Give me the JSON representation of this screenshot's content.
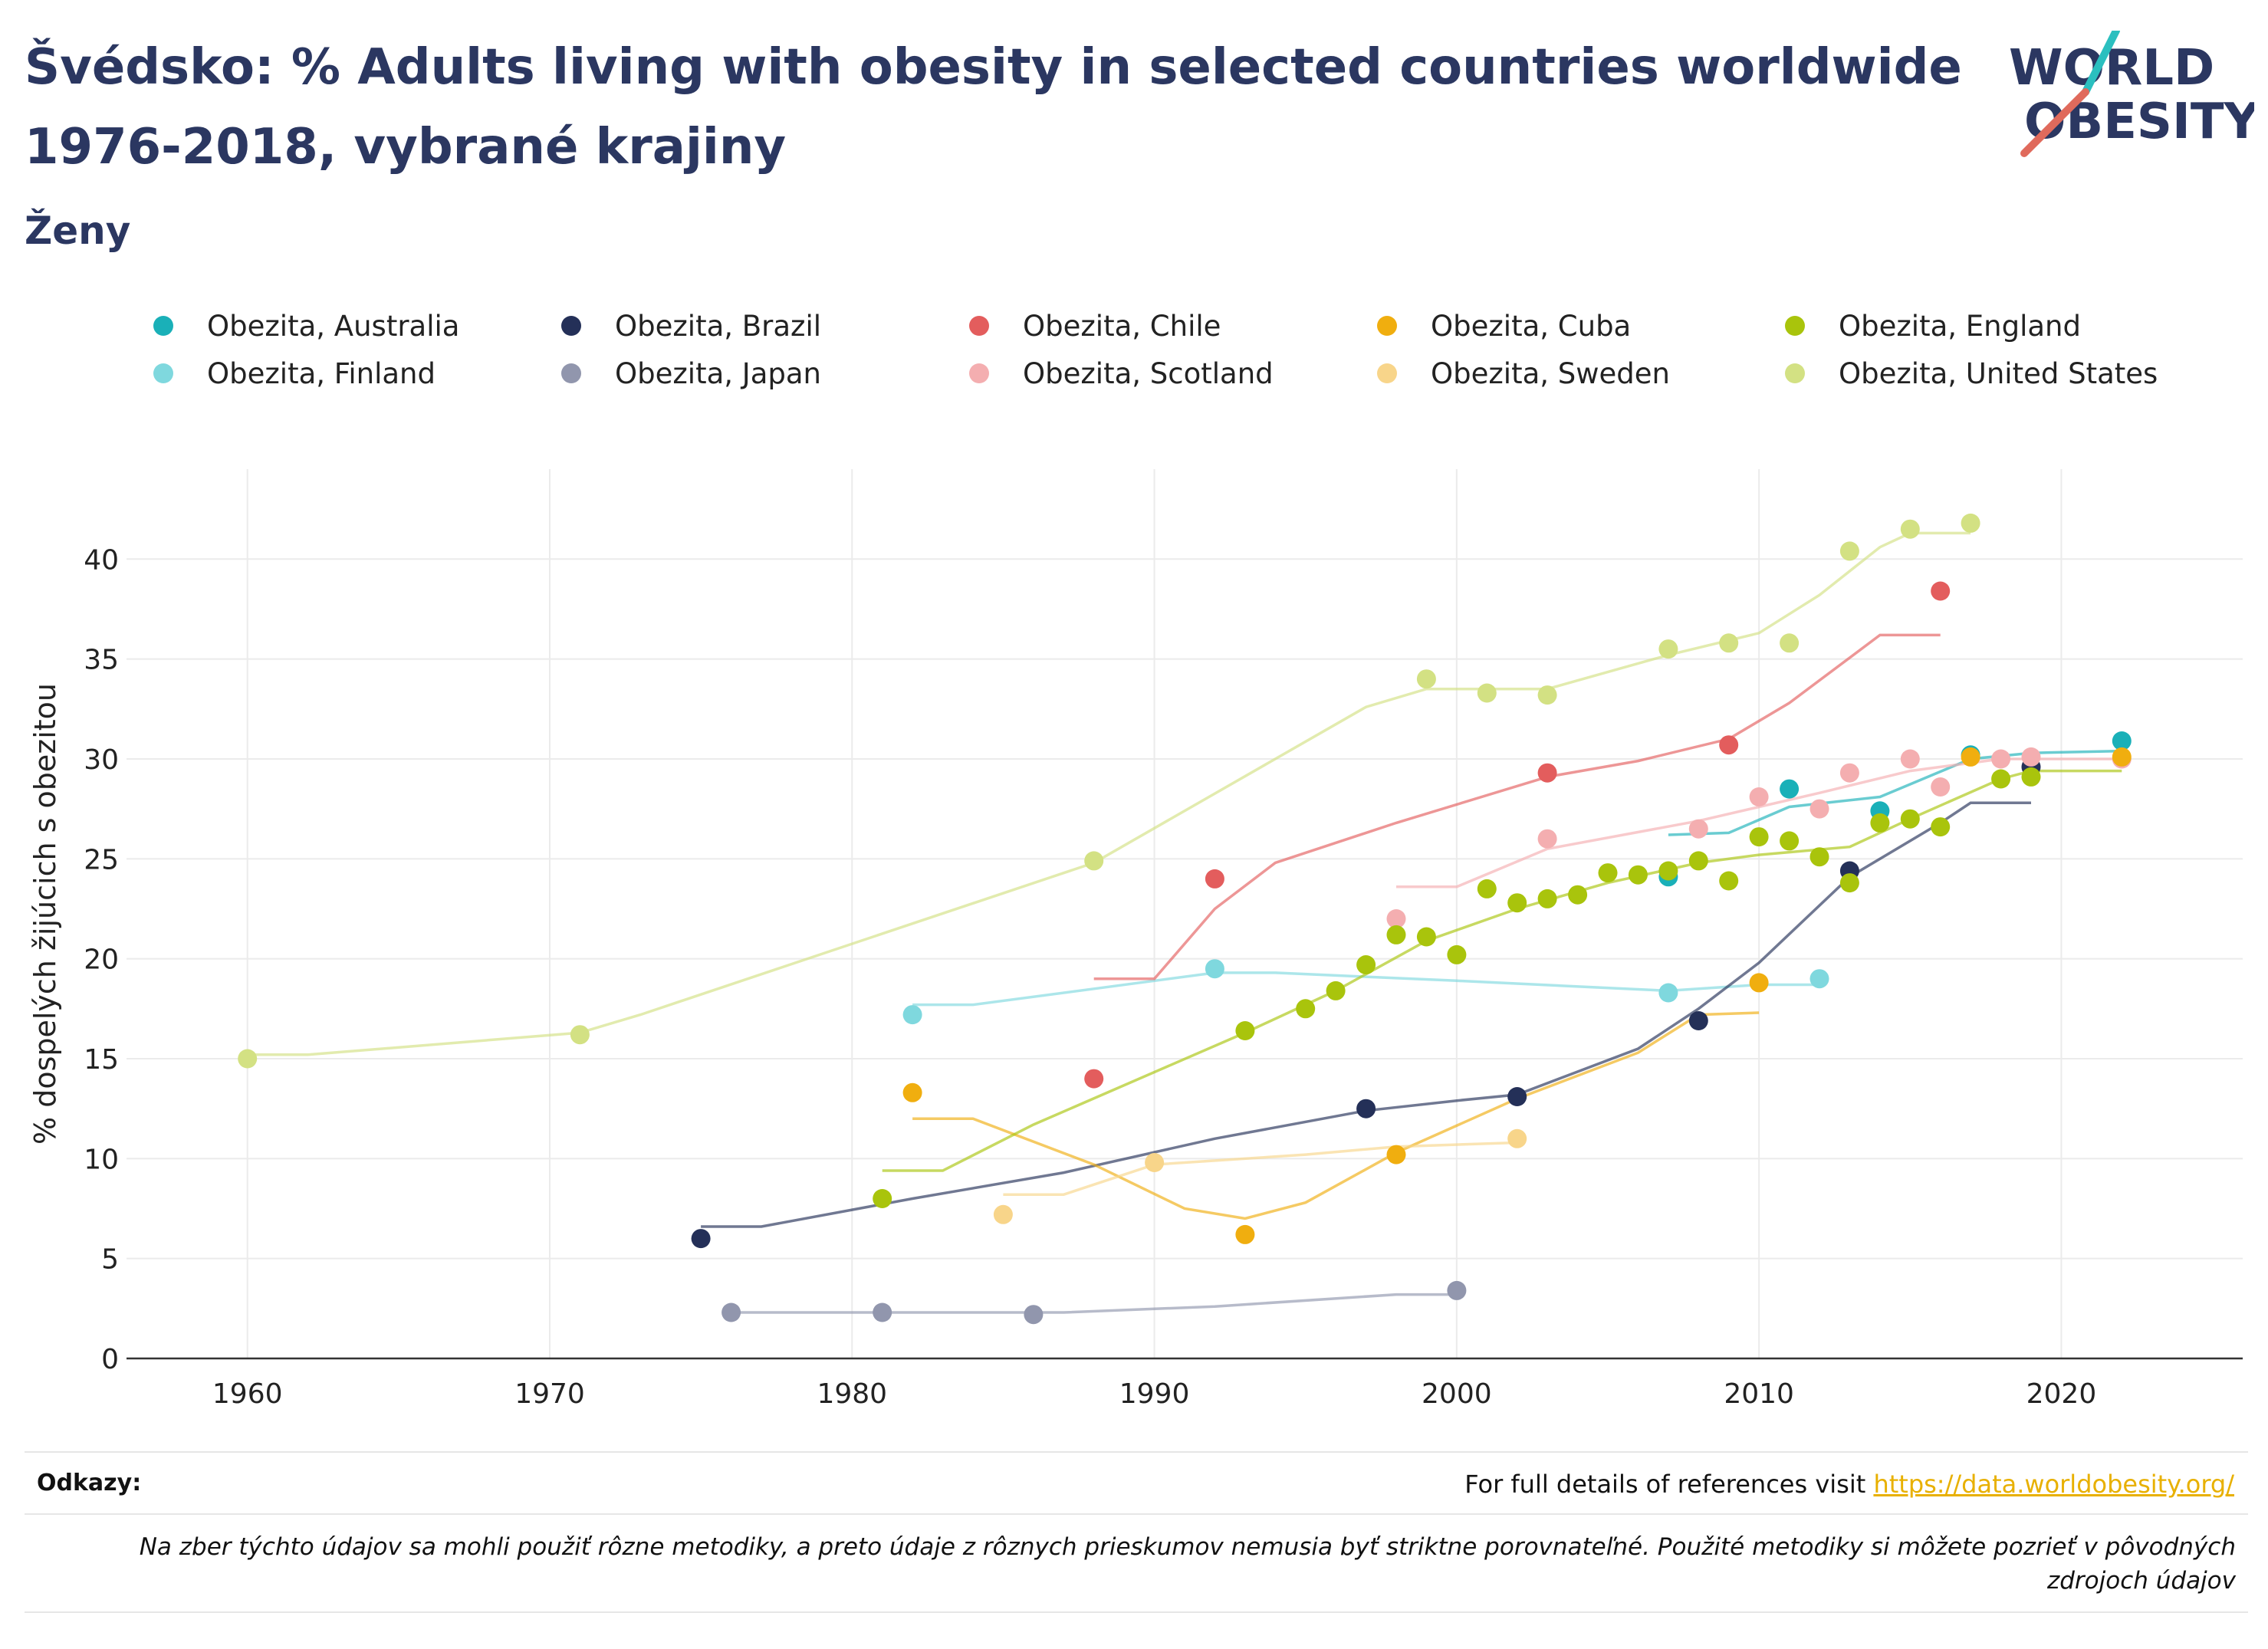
{
  "header": {
    "title": "Švédsko: % Adults living with obesity in selected countries worldwide 1976-2018, vybrané krajiny",
    "subtitle": "Ženy",
    "logo_line1": "WORLD",
    "logo_line2": "OBESITY"
  },
  "footer": {
    "ref_label": "Odkazy:",
    "ref_text": "For full details of references visit ",
    "ref_link": "https://data.worldobesity.org/",
    "note": "Na zber týchto údajov sa mohli použiť rôzne metodiky, a preto údaje z rôznych prieskumov nemusia byť striktne porovnateľné. Použité metodiky si môžete pozrieť v pôvodných zdrojoch údajov"
  },
  "colors": {
    "title": "#2b3761",
    "logo_slash_teal": "#2bbfbf",
    "logo_slash_red": "#e06a5c"
  },
  "chart_data": {
    "type": "scatter",
    "title": "Švédsko: % Adults living with obesity in selected countries worldwide 1976-2018, vybrané krajiny",
    "subtitle": "Ženy",
    "xlabel": "",
    "ylabel": "% dospelých žijúcich s obezitou",
    "xlim": [
      1956,
      2026
    ],
    "ylim": [
      0,
      44.5
    ],
    "xticks": [
      1960,
      1970,
      1980,
      1990,
      2000,
      2010,
      2020
    ],
    "yticks": [
      0,
      5,
      10,
      15,
      20,
      25,
      30,
      35,
      40
    ],
    "grid": true,
    "legend_position": "top",
    "series": [
      {
        "name": "Obezita, Australia",
        "color": "#1ab0b8",
        "points": [
          [
            2007,
            24.1
          ],
          [
            2011,
            28.5
          ],
          [
            2014,
            27.4
          ],
          [
            2017,
            30.2
          ],
          [
            2022,
            30.9
          ]
        ],
        "trend": [
          [
            2007,
            26.2
          ],
          [
            2009,
            26.3
          ],
          [
            2011,
            27.6
          ],
          [
            2014,
            28.1
          ],
          [
            2017,
            30.0
          ],
          [
            2019,
            30.3
          ],
          [
            2022,
            30.4
          ]
        ]
      },
      {
        "name": "Obezita, Finland",
        "color": "#7fd8de",
        "points": [
          [
            1982,
            17.2
          ],
          [
            1992,
            19.5
          ],
          [
            2007,
            18.3
          ],
          [
            2012,
            19.0
          ]
        ],
        "trend": [
          [
            1982,
            17.7
          ],
          [
            1984,
            17.7
          ],
          [
            1988,
            18.5
          ],
          [
            1992,
            19.3
          ],
          [
            1994,
            19.3
          ],
          [
            2000,
            18.9
          ],
          [
            2007,
            18.4
          ],
          [
            2010,
            18.7
          ],
          [
            2012,
            18.7
          ]
        ]
      },
      {
        "name": "Obezita, Brazil",
        "color": "#243058",
        "points": [
          [
            1975,
            6.0
          ],
          [
            1997,
            12.5
          ],
          [
            2002,
            13.1
          ],
          [
            2008,
            16.9
          ],
          [
            2013,
            24.4
          ],
          [
            2019,
            29.6
          ]
        ],
        "trend": [
          [
            1975,
            6.6
          ],
          [
            1977,
            6.6
          ],
          [
            1982,
            8.0
          ],
          [
            1987,
            9.3
          ],
          [
            1992,
            11.0
          ],
          [
            1997,
            12.4
          ],
          [
            2000,
            12.9
          ],
          [
            2002,
            13.2
          ],
          [
            2006,
            15.5
          ],
          [
            2008,
            17.5
          ],
          [
            2010,
            19.8
          ],
          [
            2013,
            24.1
          ],
          [
            2016,
            26.8
          ],
          [
            2017,
            27.8
          ],
          [
            2019,
            27.8
          ]
        ]
      },
      {
        "name": "Obezita, Japan",
        "color": "#9196ad",
        "points": [
          [
            1976,
            2.3
          ],
          [
            1981,
            2.3
          ],
          [
            1986,
            2.2
          ],
          [
            2000,
            3.4
          ]
        ],
        "trend": [
          [
            1976,
            2.3
          ],
          [
            1981,
            2.3
          ],
          [
            1987,
            2.3
          ],
          [
            1992,
            2.6
          ],
          [
            1998,
            3.2
          ],
          [
            2000,
            3.2
          ]
        ]
      },
      {
        "name": "Obezita, Chile",
        "color": "#e35d5d",
        "points": [
          [
            1988,
            14.0
          ],
          [
            1992,
            24.0
          ],
          [
            2003,
            29.3
          ],
          [
            2009,
            30.7
          ],
          [
            2016,
            38.4
          ]
        ],
        "trend": [
          [
            1988,
            19.0
          ],
          [
            1990,
            19.0
          ],
          [
            1992,
            22.5
          ],
          [
            1994,
            24.8
          ],
          [
            1998,
            26.8
          ],
          [
            2003,
            29.1
          ],
          [
            2006,
            29.9
          ],
          [
            2009,
            31.0
          ],
          [
            2011,
            32.8
          ],
          [
            2014,
            36.2
          ],
          [
            2016,
            36.2
          ]
        ]
      },
      {
        "name": "Obezita, Scotland",
        "color": "#f4aeb0",
        "points": [
          [
            1998,
            22.0
          ],
          [
            2003,
            26.0
          ],
          [
            2008,
            26.5
          ],
          [
            2010,
            28.1
          ],
          [
            2012,
            27.5
          ],
          [
            2013,
            29.3
          ],
          [
            2015,
            30.0
          ],
          [
            2016,
            28.6
          ],
          [
            2018,
            30.0
          ],
          [
            2019,
            30.1
          ],
          [
            2022,
            30.0
          ]
        ],
        "trend": [
          [
            1998,
            23.6
          ],
          [
            2000,
            23.6
          ],
          [
            2003,
            25.5
          ],
          [
            2008,
            26.9
          ],
          [
            2012,
            28.3
          ],
          [
            2015,
            29.4
          ],
          [
            2018,
            30.0
          ],
          [
            2022,
            30.0
          ]
        ]
      },
      {
        "name": "Obezita, Cuba",
        "color": "#f0ae0f",
        "points": [
          [
            1982,
            13.3
          ],
          [
            1993,
            6.2
          ],
          [
            1998,
            10.2
          ],
          [
            2010,
            18.8
          ],
          [
            2017,
            30.1
          ],
          [
            2022,
            30.1
          ]
        ],
        "trend": [
          [
            1982,
            12.0
          ],
          [
            1984,
            12.0
          ],
          [
            1988,
            9.7
          ],
          [
            1991,
            7.5
          ],
          [
            1993,
            7.0
          ],
          [
            1995,
            7.8
          ],
          [
            1998,
            10.3
          ],
          [
            2002,
            13.0
          ],
          [
            2006,
            15.3
          ],
          [
            2008,
            17.2
          ],
          [
            2010,
            17.3
          ]
        ]
      },
      {
        "name": "Obezita, Sweden",
        "color": "#f8d58a",
        "points": [
          [
            1985,
            7.2
          ],
          [
            1990,
            9.8
          ],
          [
            2002,
            11.0
          ]
        ],
        "trend": [
          [
            1985,
            8.2
          ],
          [
            1987,
            8.2
          ],
          [
            1990,
            9.7
          ],
          [
            1995,
            10.2
          ],
          [
            1998,
            10.6
          ],
          [
            2002,
            10.8
          ]
        ]
      },
      {
        "name": "Obezita, England",
        "color": "#a9c40c",
        "points": [
          [
            1981,
            8.0
          ],
          [
            1993,
            16.4
          ],
          [
            1995,
            17.5
          ],
          [
            1996,
            18.4
          ],
          [
            1997,
            19.7
          ],
          [
            1998,
            21.2
          ],
          [
            1999,
            21.1
          ],
          [
            2000,
            20.2
          ],
          [
            2001,
            23.5
          ],
          [
            2002,
            22.8
          ],
          [
            2003,
            23.0
          ],
          [
            2004,
            23.2
          ],
          [
            2005,
            24.3
          ],
          [
            2006,
            24.2
          ],
          [
            2007,
            24.4
          ],
          [
            2008,
            24.9
          ],
          [
            2009,
            23.9
          ],
          [
            2010,
            26.1
          ],
          [
            2011,
            25.9
          ],
          [
            2012,
            25.1
          ],
          [
            2013,
            23.8
          ],
          [
            2014,
            26.8
          ],
          [
            2015,
            27.0
          ],
          [
            2016,
            26.6
          ],
          [
            2018,
            29.0
          ],
          [
            2019,
            29.1
          ]
        ],
        "trend": [
          [
            1981,
            9.4
          ],
          [
            1983,
            9.4
          ],
          [
            1986,
            11.7
          ],
          [
            1993,
            16.3
          ],
          [
            1996,
            18.4
          ],
          [
            1999,
            20.9
          ],
          [
            2002,
            22.5
          ],
          [
            2005,
            23.8
          ],
          [
            2008,
            24.8
          ],
          [
            2010,
            25.2
          ],
          [
            2013,
            25.6
          ],
          [
            2015,
            27.0
          ],
          [
            2018,
            29.0
          ],
          [
            2019,
            29.4
          ],
          [
            2022,
            29.4
          ]
        ]
      },
      {
        "name": "Obezita, United States",
        "color": "#d3e183",
        "points": [
          [
            1960,
            15.0
          ],
          [
            1971,
            16.2
          ],
          [
            1988,
            24.9
          ],
          [
            1999,
            34.0
          ],
          [
            2001,
            33.3
          ],
          [
            2003,
            33.2
          ],
          [
            2007,
            35.5
          ],
          [
            2009,
            35.8
          ],
          [
            2011,
            35.8
          ],
          [
            2013,
            40.4
          ],
          [
            2015,
            41.5
          ],
          [
            2017,
            41.8
          ]
        ],
        "trend": [
          [
            1960,
            15.2
          ],
          [
            1962,
            15.2
          ],
          [
            1971,
            16.3
          ],
          [
            1973,
            17.2
          ],
          [
            1988,
            24.8
          ],
          [
            1997,
            32.6
          ],
          [
            1999,
            33.5
          ],
          [
            2003,
            33.5
          ],
          [
            2007,
            35.2
          ],
          [
            2010,
            36.3
          ],
          [
            2012,
            38.2
          ],
          [
            2014,
            40.6
          ],
          [
            2015,
            41.3
          ],
          [
            2017,
            41.3
          ]
        ]
      }
    ]
  }
}
